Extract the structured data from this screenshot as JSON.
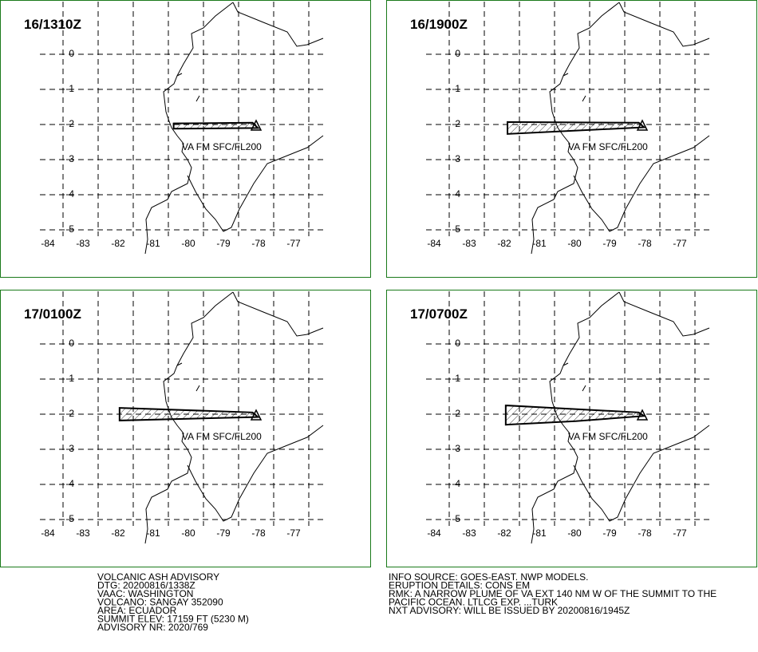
{
  "axes": {
    "xticks": [
      -84,
      -83,
      -82,
      -81,
      -80,
      -79,
      -78,
      -77
    ],
    "yticks": [
      0,
      -1,
      -2,
      -3,
      -4,
      -5
    ]
  },
  "plume_label": "VA FM SFC/FL200",
  "summit": [
    -78.5,
    -2.0
  ],
  "panels": [
    {
      "time": "16/1310Z",
      "plume_lon": [
        -80.85,
        -78.6,
        -78.45,
        -80.85
      ],
      "plume_lat": [
        -1.97,
        -1.95,
        -2.1,
        -2.12
      ]
    },
    {
      "time": "16/1900Z",
      "plume_lon": [
        -82.34,
        -78.6,
        -78.45,
        -82.34
      ],
      "plume_lat": [
        -1.93,
        -1.95,
        -2.08,
        -2.27
      ]
    },
    {
      "time": "17/0100Z",
      "plume_lon": [
        -82.39,
        -78.6,
        -78.45,
        -82.39
      ],
      "plume_lat": [
        -1.82,
        -1.95,
        -2.08,
        -2.18
      ]
    },
    {
      "time": "17/0700Z",
      "plume_lon": [
        -82.39,
        -78.6,
        -78.45,
        -80.4,
        -82.39
      ],
      "plume_lat": [
        -1.75,
        -1.95,
        -2.05,
        -2.2,
        -2.3
      ]
    }
  ],
  "advisory_left": [
    "VOLCANIC ASH ADVISORY",
    "DTG: 20200816/1338Z",
    "VAAC: WASHINGTON",
    "VOLCANO: SANGAY 352090",
    "AREA: ECUADOR",
    "SUMMIT ELEV: 17159 FT (5230 M)",
    "ADVISORY NR: 2020/769"
  ],
  "advisory_right": [
    "INFO SOURCE: GOES-EAST. NWP MODELS.",
    "ERUPTION DETAILS: CONS EM",
    "RMK: A NARROW PLUME OF VA EXT 140 NM W OF THE SUMMIT TO THE",
    "PACIFIC OCEAN. LTLCG EXP.  ...TURK",
    "NXT ADVISORY: WILL BE ISSUED BY 20200816/1945Z"
  ]
}
